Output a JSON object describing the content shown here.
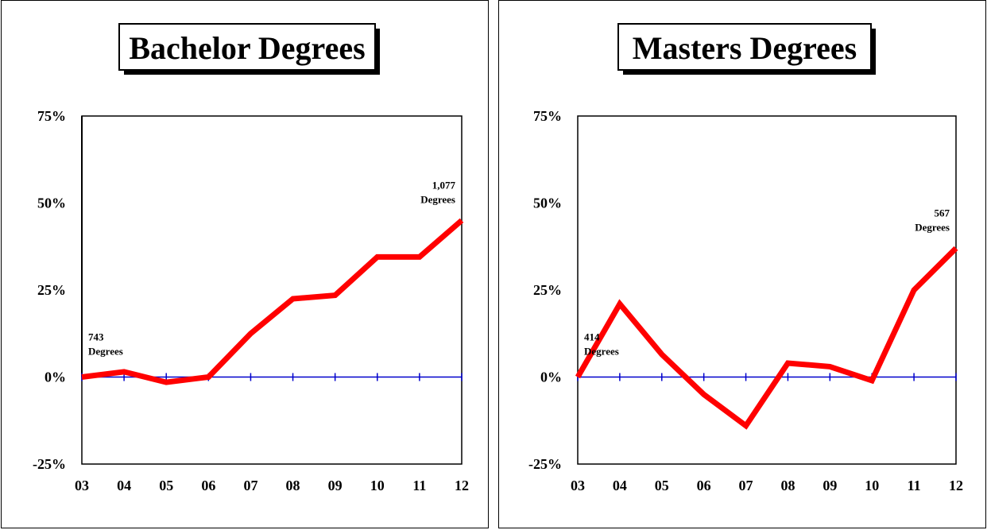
{
  "chart_data": [
    {
      "type": "line",
      "title": "Bachelor Degrees",
      "categories": [
        "03",
        "04",
        "05",
        "06",
        "07",
        "08",
        "09",
        "10",
        "11",
        "12"
      ],
      "series": [
        {
          "values": [
            0,
            1.5,
            -1.5,
            0,
            12.5,
            22.5,
            23.5,
            34.5,
            34.5,
            45
          ]
        }
      ],
      "yticks": [
        "75%",
        "50%",
        "25%",
        "0%",
        "-25%"
      ],
      "ylim": [
        -25,
        75
      ],
      "annotations": [
        {
          "line1": "743",
          "line2": "Degrees",
          "index": 0
        },
        {
          "line1": "1,077",
          "line2": "Degrees",
          "index": 9
        }
      ],
      "line_color": "#ff0000",
      "zero_line_color": "#0000cc"
    },
    {
      "type": "line",
      "title": "Masters Degrees",
      "categories": [
        "03",
        "04",
        "05",
        "06",
        "07",
        "08",
        "09",
        "10",
        "11",
        "12"
      ],
      "series": [
        {
          "values": [
            0,
            21,
            6.5,
            -5,
            -14,
            4,
            3,
            -1,
            25,
            37
          ]
        }
      ],
      "yticks": [
        "75%",
        "50%",
        "25%",
        "0%",
        "-25%"
      ],
      "ylim": [
        -25,
        75
      ],
      "annotations": [
        {
          "line1": "414",
          "line2": "Degrees",
          "index": 0
        },
        {
          "line1": "567",
          "line2": "Degrees",
          "index": 9
        }
      ],
      "line_color": "#ff0000",
      "zero_line_color": "#0000cc"
    }
  ]
}
